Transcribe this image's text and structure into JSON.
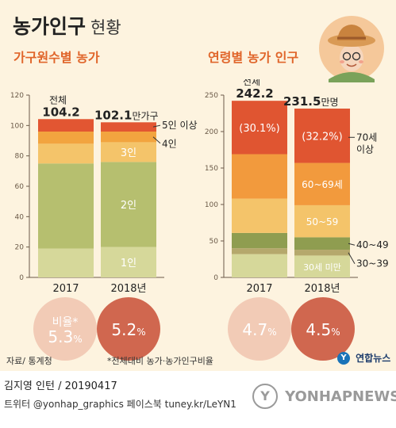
{
  "header": {
    "title_bold": "농가인구",
    "title_light": "현황"
  },
  "colors": {
    "background": "#fdf3df",
    "subtitle": "#e0652a",
    "axis": "#6b5a48",
    "footer_gray": "#4a4a4a",
    "yonhap_blue": "#1a73b8"
  },
  "chart_data": [
    {
      "type": "bar",
      "stacked": true,
      "title": "가구원수별 농가",
      "categories": [
        "2017",
        "2018년"
      ],
      "ylim": [
        0,
        120
      ],
      "yticks": [
        0,
        20,
        40,
        60,
        80,
        100,
        120
      ],
      "totals": [
        104.2,
        102.1
      ],
      "total_labels": [
        "104.2",
        "102.1"
      ],
      "total_prefix": "전체",
      "total_unit": "만가구",
      "series": [
        {
          "name": "1인",
          "color": "#d6d89a",
          "values": [
            19,
            20
          ]
        },
        {
          "name": "2인",
          "color": "#b6bf6f",
          "values": [
            56,
            56
          ]
        },
        {
          "name": "3인",
          "color": "#f4c46a",
          "values": [
            13,
            13
          ]
        },
        {
          "name": "4인",
          "color": "#f2a43f",
          "values": [
            8,
            7
          ]
        },
        {
          "name": "5인 이상",
          "color": "#e25632",
          "values": [
            8.2,
            6.1
          ]
        }
      ],
      "label_texts": {
        "s1": "1인",
        "s2": "2인",
        "s3": "3인",
        "s4": "4인",
        "s5": "5인 이상"
      },
      "ratio_label": "비율*",
      "ratios": [
        "5.3",
        "5.2"
      ],
      "ratio_unit": "%",
      "ratio_circle_colors": [
        "#f2cbb6",
        "#d0674f"
      ]
    },
    {
      "type": "bar",
      "stacked": true,
      "title": "연령별 농가 인구",
      "categories": [
        "2017",
        "2018년"
      ],
      "ylim": [
        0,
        250
      ],
      "yticks": [
        0,
        50,
        100,
        150,
        200,
        250
      ],
      "totals": [
        242.2,
        231.5
      ],
      "total_labels": [
        "242.2",
        "231.5"
      ],
      "total_prefix": "전체",
      "total_unit": "만명",
      "series": [
        {
          "name": "30세 미만",
          "color": "#d6d89a",
          "values": [
            32,
            30
          ]
        },
        {
          "name": "30~39",
          "color": "#b5a86c",
          "values": [
            8,
            8
          ]
        },
        {
          "name": "40~49",
          "color": "#8f9d50",
          "values": [
            21,
            17
          ]
        },
        {
          "name": "50~59",
          "color": "#f4c46a",
          "values": [
            47,
            44
          ]
        },
        {
          "name": "60~69세",
          "color": "#f29a3d",
          "values": [
            61,
            58
          ]
        },
        {
          "name": "70세 이상",
          "color": "#e05531",
          "values": [
            73.2,
            74.5
          ]
        }
      ],
      "percent_labels": [
        "(30.1%)",
        "(32.2%)"
      ],
      "label_texts": {
        "s1": "30세 미만",
        "s2": "30~39",
        "s3": "40~49",
        "s4": "50~59",
        "s5": "60~69세",
        "s6_line1": "70세",
        "s6_line2": "이상"
      },
      "ratios": [
        "4.7",
        "4.5"
      ],
      "ratio_unit": "%",
      "ratio_circle_colors": [
        "#f2cbb6",
        "#d0674f"
      ]
    }
  ],
  "notes": {
    "source": "자료/ 통계청",
    "footnote": "*전체대비 농가·농가인구비율"
  },
  "brand": {
    "yonhap_news": "연합뉴스",
    "yonhap_logo_letter": "Y",
    "watermark_circle_letter": "Y",
    "watermark_text": "YONHAPNEWS"
  },
  "footer": {
    "credit": "김지영 인턴 / 20190417",
    "sns": "트위터 @yonhap_graphics  페이스북 tuney.kr/LeYN1"
  }
}
